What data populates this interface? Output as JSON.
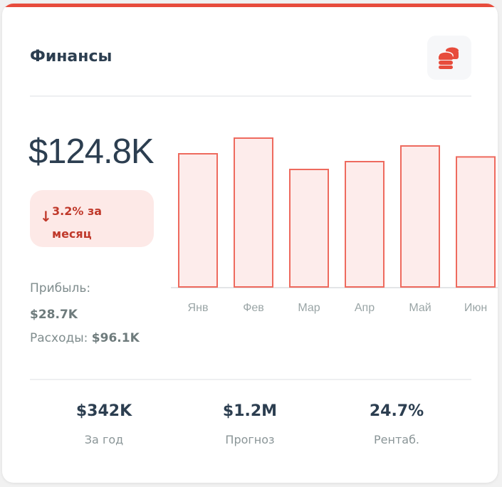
{
  "card": {
    "title": "Финансы",
    "icon": "coins-icon",
    "accent_color": "#e74c3c",
    "amount": "$124.8K",
    "change": {
      "direction": "down",
      "icon": "arrow-down-icon",
      "text": "3.2% за месяц",
      "color": "#c0392b"
    },
    "profit": {
      "label": "Прибыль:",
      "value": "$28.7K"
    },
    "expenses": {
      "label": "Расходы:",
      "value": "$96.1K"
    }
  },
  "chart_data": {
    "type": "bar",
    "categories": [
      "Янв",
      "Фев",
      "Мар",
      "Апр",
      "Май",
      "Июн"
    ],
    "values": [
      85,
      95,
      75,
      80,
      90,
      83
    ],
    "ylim": [
      0,
      100
    ],
    "grid": false,
    "bar_fill": "#fdeceb",
    "bar_stroke": "#ee6a5e"
  },
  "stats": [
    {
      "value": "$342K",
      "label": "За год"
    },
    {
      "value": "$1.2M",
      "label": "Прогноз"
    },
    {
      "value": "24.7%",
      "label": "Рентаб."
    }
  ]
}
